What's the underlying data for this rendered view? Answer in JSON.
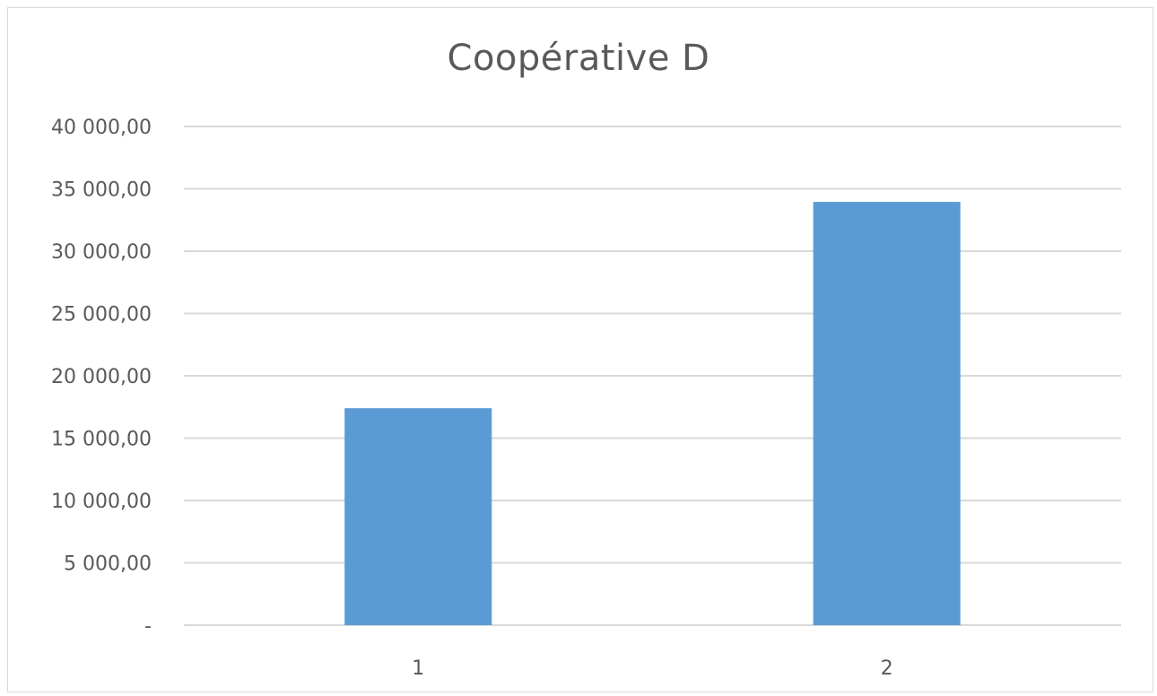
{
  "chart_data": {
    "type": "bar",
    "title": "Coopérative D",
    "categories": [
      "1",
      "2"
    ],
    "values": [
      17400,
      33950
    ],
    "ylim": [
      0,
      40000
    ],
    "y_ticks": [
      0,
      5000,
      10000,
      15000,
      20000,
      25000,
      30000,
      35000,
      40000
    ],
    "y_tick_labels": [
      "-",
      "5 000,00",
      "10 000,00",
      "15 000,00",
      "20 000,00",
      "25 000,00",
      "30 000,00",
      "35 000,00",
      "40 000,00"
    ],
    "xlabel": "",
    "ylabel": "",
    "grid": true,
    "legend": "none",
    "bar_color": "#5b9bd5",
    "grid_color": "#d9d9d9",
    "text_color": "#595959"
  }
}
